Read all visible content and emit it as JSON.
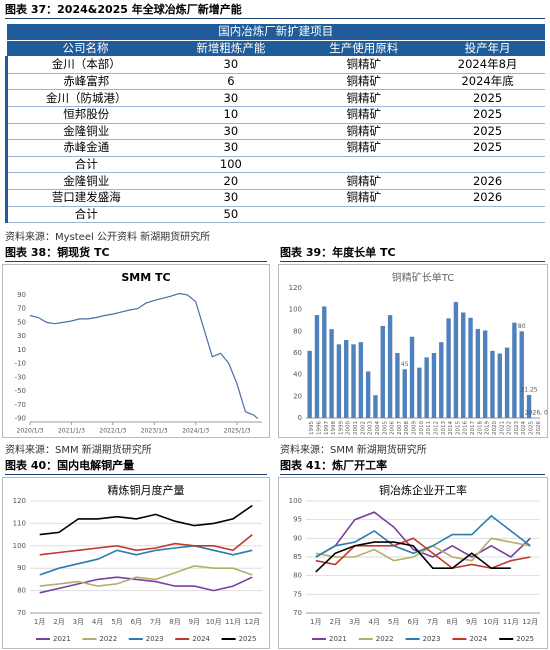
{
  "figure37": {
    "title": "图表 37：2024&2025 年全球冶炼厂新增产能"
  },
  "table": {
    "title": "国内冶炼厂新扩建项目",
    "columns": [
      "公司名称",
      "新增粗炼产能",
      "生产使用原料",
      "投产年月"
    ],
    "rows": [
      [
        "金川（本部）",
        "30",
        "铜精矿",
        "2024年8月"
      ],
      [
        "赤峰富邦",
        "6",
        "铜精矿",
        "2024年底"
      ],
      [
        "金川（防城港）",
        "30",
        "铜精矿",
        "2025"
      ],
      [
        "恒邦股份",
        "10",
        "铜精矿",
        "2025"
      ],
      [
        "金隆铜业",
        "30",
        "铜精矿",
        "2025"
      ],
      [
        "赤峰金通",
        "30",
        "铜精矿",
        "2025"
      ],
      [
        "合计",
        "100"
      ],
      [
        "金隆铜业",
        "20",
        "铜精矿",
        "2026"
      ],
      [
        "营口建发盛海",
        "30",
        "铜精矿",
        "2026"
      ],
      [
        "合计",
        "50"
      ]
    ]
  },
  "sources": [
    "资料来源：Mysteel 公开资料 新湖期货研究所",
    "资料来源：SMM 新湖期货研究所",
    "资料来源：SMM 新湖期货研究所"
  ],
  "figure_titles": [
    "图表 38：铜现货 TC",
    "图表 39：年度长单 TC",
    "图表 40：国内电解铜产量",
    "图表 41：炼厂开工率"
  ],
  "chart_data": [
    {
      "type": "line",
      "title": "SMM TC",
      "color": "#4a6fa5",
      "x": [
        2020.0,
        2020.2,
        2020.4,
        2020.6,
        2020.8,
        2021.0,
        2021.2,
        2021.4,
        2021.6,
        2021.8,
        2022.0,
        2022.2,
        2022.4,
        2022.6,
        2022.8,
        2023.0,
        2023.2,
        2023.4,
        2023.6,
        2023.8,
        2024.0,
        2024.2,
        2024.4,
        2024.6,
        2024.8,
        2025.0,
        2025.2,
        2025.4,
        2025.5
      ],
      "values": [
        60,
        57,
        50,
        48,
        50,
        52,
        55,
        55,
        57,
        60,
        62,
        65,
        68,
        70,
        78,
        82,
        85,
        88,
        92,
        90,
        80,
        40,
        0,
        5,
        -10,
        -40,
        -80,
        -85,
        -90
      ],
      "xlim": [
        2020,
        2025.6
      ],
      "xticks": [
        {
          "value": 2020,
          "label": "2020/1/3"
        },
        {
          "value": 2021,
          "label": "2021/1/3"
        },
        {
          "value": 2022,
          "label": "2022/1/3"
        },
        {
          "value": 2023,
          "label": "2023/1/3"
        },
        {
          "value": 2024,
          "label": "2024/1/3"
        },
        {
          "value": 2025,
          "label": "2025/1/3"
        }
      ],
      "ylim": [
        -95,
        100
      ],
      "yticks": [
        -90,
        -70,
        -50,
        -30,
        -10,
        10,
        30,
        50,
        70,
        90
      ],
      "grid": false
    },
    {
      "type": "bar",
      "title": "铜精矿长单TC",
      "color": "#4f81bd",
      "categories": [
        "1995",
        "1996",
        "1997",
        "1998",
        "1999",
        "2000",
        "2001",
        "2002",
        "2003",
        "2004",
        "2005",
        "2006",
        "2007",
        "2008",
        "2009",
        "2010",
        "2011",
        "2012",
        "2013",
        "2014",
        "2015",
        "2016",
        "2017",
        "2018",
        "2019",
        "2020",
        "2021",
        "2022",
        "2023",
        "2024",
        "2025",
        "2026"
      ],
      "values": [
        62,
        95,
        103,
        82,
        68,
        72,
        68,
        70,
        43,
        21,
        85,
        95,
        60,
        45,
        75,
        46.5,
        56,
        60,
        70,
        92,
        107,
        97.35,
        92.5,
        82.25,
        80.8,
        62,
        59.5,
        65,
        88,
        80,
        21.25,
        0
      ],
      "value_labels": [
        null,
        null,
        null,
        null,
        null,
        null,
        null,
        null,
        null,
        null,
        null,
        null,
        null,
        "45",
        null,
        null,
        null,
        null,
        null,
        null,
        null,
        null,
        null,
        null,
        null,
        null,
        null,
        null,
        null,
        "80",
        "21.25",
        "2026, 0"
      ],
      "ylim": [
        0,
        120
      ],
      "yticks": [
        0,
        20,
        40,
        60,
        80,
        100,
        120
      ],
      "grid": false
    },
    {
      "type": "line",
      "title": "精炼铜月度产量",
      "legend": "bottom",
      "grid": true,
      "categories": [
        "1月",
        "2月",
        "3月",
        "4月",
        "5月",
        "6月",
        "7月",
        "8月",
        "9月",
        "10月",
        "11月",
        "12月"
      ],
      "ylim": [
        70,
        120
      ],
      "yticks": [
        70,
        80,
        90,
        100,
        110,
        120
      ],
      "series": [
        {
          "name": "2021",
          "color": "#7b3f9e",
          "values": [
            79,
            81,
            83,
            85,
            86,
            85,
            84,
            82,
            82,
            80,
            82,
            86
          ]
        },
        {
          "name": "2022",
          "color": "#b5ad6e",
          "values": [
            82,
            83,
            84,
            82,
            83,
            86,
            85,
            88,
            91,
            90,
            90,
            87
          ]
        },
        {
          "name": "2023",
          "color": "#2b7bb5",
          "values": [
            87,
            90,
            92,
            94,
            98,
            96,
            98,
            99,
            100,
            98,
            96,
            98
          ]
        },
        {
          "name": "2024",
          "color": "#c0392b",
          "values": [
            96,
            97,
            98,
            99,
            100,
            98,
            99,
            101,
            100,
            100,
            98,
            105
          ]
        },
        {
          "name": "2025",
          "color": "#000000",
          "values": [
            105,
            106,
            112,
            112,
            113,
            112,
            114,
            111,
            109,
            110,
            112,
            118
          ]
        }
      ]
    },
    {
      "type": "line",
      "title": "铜冶炼企业开工率",
      "legend": "bottom",
      "grid": true,
      "categories": [
        "1月",
        "2月",
        "3月",
        "4月",
        "5月",
        "6月",
        "7月",
        "8月",
        "9月",
        "10月",
        "11月",
        "12月"
      ],
      "ylim": [
        70,
        100
      ],
      "yticks": [
        70,
        75,
        80,
        85,
        90,
        95,
        100
      ],
      "series": [
        {
          "name": "2021",
          "color": "#7b3f9e",
          "values": [
            85,
            88,
            95,
            97,
            93,
            87,
            85,
            88,
            85,
            88,
            85,
            90
          ]
        },
        {
          "name": "2022",
          "color": "#b5ad6e",
          "values": [
            86,
            85,
            85,
            87,
            84,
            85,
            88,
            85,
            84,
            90,
            89,
            88
          ]
        },
        {
          "name": "2023",
          "color": "#2b7bb5",
          "values": [
            85,
            88,
            89,
            92,
            88,
            86,
            88,
            91,
            91,
            96,
            92,
            88
          ]
        },
        {
          "name": "2024",
          "color": "#c0392b",
          "values": [
            84,
            83,
            88,
            88,
            88,
            90,
            86,
            82,
            83,
            82,
            84,
            85
          ]
        },
        {
          "name": "2025",
          "color": "#000000",
          "values": [
            81,
            86,
            88,
            89,
            89,
            88,
            82,
            82,
            86,
            82,
            82,
            null
          ]
        }
      ]
    }
  ]
}
